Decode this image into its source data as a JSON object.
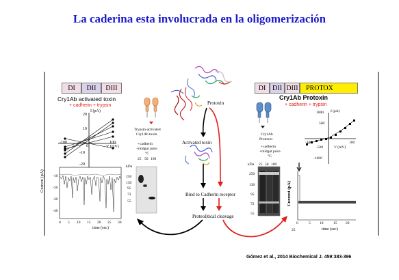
{
  "slide": {
    "title": "La caderina esta involucrada en la oligomerización",
    "citation": "Gómez et al., 2014 Biochemical J. 459:383-396"
  },
  "left_panel": {
    "domains": [
      "DI",
      "DII",
      "DIII"
    ],
    "toxin_title": "Cry1Ab activated toxin",
    "toxin_subtitle": "+ cadherin + trypsin",
    "iv_axis": {
      "x_label": "V (mV)",
      "y_label": "I (pA)",
      "x_ticks": [
        "-100",
        "0",
        "100"
      ],
      "y_ticks": [
        "20",
        "10",
        "-10",
        "-20"
      ]
    },
    "trace": {
      "y_label": "Current (pA)",
      "x_label": "time (sec)",
      "x_ticks": [
        "0",
        "5",
        "10",
        "15",
        "20",
        "25",
        "30"
      ],
      "y_ticks": [
        "-10",
        "-20",
        "-30",
        "-40"
      ]
    }
  },
  "center_left_blot": {
    "caption_1": "Trypsin-activated",
    "caption_2": "Cry1Ab toxin",
    "caption_3": "+cadherin",
    "caption_4": "+midgut juice",
    "caption_5": "°C",
    "lanes": [
      "25",
      "50",
      "100"
    ],
    "kda_label": "kDa",
    "markers": [
      "250",
      "130",
      "95",
      "72",
      "55"
    ]
  },
  "pathway": {
    "protoxin": "Protoxin",
    "activated": "Activated toxin",
    "bind": "Bind to Cadherin receptor",
    "cleavage": "Proteolitical cleavage"
  },
  "center_right_blot": {
    "caption_1": "Cry1Ab",
    "caption_2": "Protoxin",
    "caption_3": "+cadherin",
    "caption_4": "+midgut juice",
    "caption_5": "°C",
    "lanes": [
      "25",
      "50",
      "100"
    ],
    "kda_label": "kDa",
    "markers": [
      "250",
      "130",
      "95",
      "72",
      "55"
    ]
  },
  "right_panel": {
    "domains": [
      "DI",
      "DII",
      "DIII",
      "PROTOX"
    ],
    "toxin_title": "Cry1Ab Protoxin",
    "toxin_subtitle": "+ cadherin + trypsin",
    "iv_axis": {
      "x_label": "V (mV)",
      "y_label": "I (pA)",
      "x_ticks": [
        "-100",
        "100"
      ],
      "y_ticks": [
        "1000",
        "500",
        "-500",
        "-1000"
      ]
    },
    "trace": {
      "y_label": "Current (pA)",
      "x_label": "time (sec)",
      "x_ticks": [
        "0",
        "5",
        "10",
        "15",
        "20"
      ],
      "y_ticks": [
        "25"
      ]
    }
  },
  "colors": {
    "title": "#1c1ccc",
    "red_text": "#e0201c",
    "di": "#f2dde6",
    "dii": "#d9d2ea",
    "protox": "#ffee00"
  }
}
